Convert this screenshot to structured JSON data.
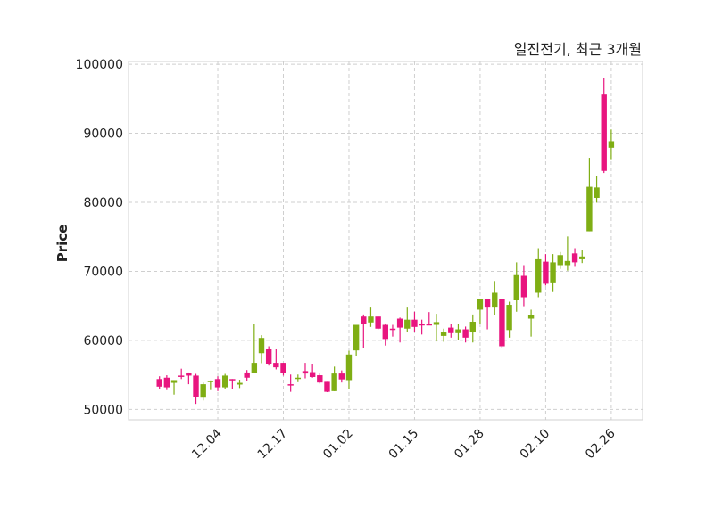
{
  "chart_data": {
    "type": "candlestick",
    "title": "일진전기, 최근 3개월",
    "xlabel": "",
    "ylabel": "Price",
    "ylim": [
      48500,
      100400
    ],
    "xlim": [
      -4.25,
      66.3
    ],
    "grid": true,
    "yticks": [
      50000,
      60000,
      70000,
      80000,
      90000,
      100000
    ],
    "ytick_labels": [
      "50000",
      "60000",
      "70000",
      "80000",
      "90000",
      "100000"
    ],
    "xticks": [
      {
        "index": 8,
        "label": "12.04"
      },
      {
        "index": 17,
        "label": "12.17"
      },
      {
        "index": 26,
        "label": "01.02"
      },
      {
        "index": 35,
        "label": "01.15"
      },
      {
        "index": 44,
        "label": "01.28"
      },
      {
        "index": 53,
        "label": "02.10"
      },
      {
        "index": 62,
        "label": "02.26"
      }
    ],
    "colors": {
      "up": "#7fae14",
      "down": "#e8157f"
    },
    "ohlc": [
      [
        54400,
        54800,
        52900,
        53300
      ],
      [
        54600,
        54950,
        52800,
        53200
      ],
      [
        53850,
        54250,
        52150,
        54250
      ],
      [
        54900,
        55900,
        54400,
        54800
      ],
      [
        55300,
        55350,
        53650,
        54900
      ],
      [
        54900,
        55150,
        50800,
        51800
      ],
      [
        51700,
        53900,
        51300,
        53650
      ],
      [
        54000,
        54200,
        52800,
        54150
      ],
      [
        54400,
        54800,
        52650,
        53200
      ],
      [
        53200,
        55150,
        52900,
        54900
      ],
      [
        54400,
        54400,
        53000,
        54250
      ],
      [
        53600,
        54300,
        53100,
        53850
      ],
      [
        55350,
        55700,
        54050,
        54600
      ],
      [
        55250,
        62350,
        55250,
        56750
      ],
      [
        58150,
        60750,
        56700,
        60350
      ],
      [
        58700,
        59150,
        56350,
        56550
      ],
      [
        56750,
        58700,
        55800,
        56100
      ],
      [
        56750,
        56750,
        54900,
        55250
      ],
      [
        53650,
        55050,
        52550,
        53550
      ],
      [
        54450,
        55050,
        53950,
        54600
      ],
      [
        55550,
        56750,
        54500,
        55200
      ],
      [
        55400,
        56600,
        54600,
        54700
      ],
      [
        54950,
        55200,
        53750,
        53900
      ],
      [
        54000,
        54000,
        52500,
        52550
      ],
      [
        52650,
        56200,
        52650,
        55200
      ],
      [
        55200,
        55650,
        53900,
        54350
      ],
      [
        54250,
        58500,
        52900,
        57950
      ],
      [
        58550,
        62250,
        57700,
        62250
      ],
      [
        63450,
        63750,
        58900,
        62350
      ],
      [
        62600,
        64750,
        61950,
        63450
      ],
      [
        63450,
        63450,
        61600,
        61700
      ],
      [
        62250,
        62450,
        59250,
        60200
      ],
      [
        61700,
        62250,
        60550,
        61550
      ],
      [
        63150,
        63300,
        59700,
        61850
      ],
      [
        61700,
        64750,
        61150,
        63000
      ],
      [
        63000,
        64150,
        61200,
        61950
      ],
      [
        62350,
        63000,
        60850,
        62250
      ],
      [
        62350,
        64100,
        62250,
        62300
      ],
      [
        62250,
        63850,
        59850,
        62650
      ],
      [
        60650,
        61700,
        59800,
        61150
      ],
      [
        61850,
        62350,
        60400,
        61050
      ],
      [
        61050,
        62350,
        60100,
        61600
      ],
      [
        61600,
        62000,
        59700,
        60400
      ],
      [
        61150,
        63750,
        59700,
        62700
      ],
      [
        64450,
        66000,
        62350,
        66000
      ],
      [
        66000,
        66000,
        61600,
        64750
      ],
      [
        64750,
        68600,
        63650,
        66900
      ],
      [
        66000,
        66000,
        58900,
        59150
      ],
      [
        61500,
        65600,
        60400,
        65150
      ],
      [
        65800,
        71300,
        64150,
        69450
      ],
      [
        69350,
        70900,
        64950,
        66250
      ],
      [
        63150,
        64450,
        60550,
        63650
      ],
      [
        66900,
        73350,
        66250,
        71750
      ],
      [
        71400,
        72500,
        67950,
        68200
      ],
      [
        68400,
        72500,
        67000,
        71300
      ],
      [
        70900,
        72800,
        70350,
        72350
      ],
      [
        70900,
        75050,
        70100,
        71500
      ],
      [
        72600,
        73350,
        70650,
        71300
      ],
      [
        71750,
        73150,
        71200,
        72150
      ],
      [
        75800,
        86450,
        75800,
        82250
      ],
      [
        80650,
        83800,
        79950,
        82150
      ],
      [
        95600,
        98000,
        84250,
        84550
      ],
      [
        87900,
        90550,
        86250,
        88850
      ]
    ]
  }
}
